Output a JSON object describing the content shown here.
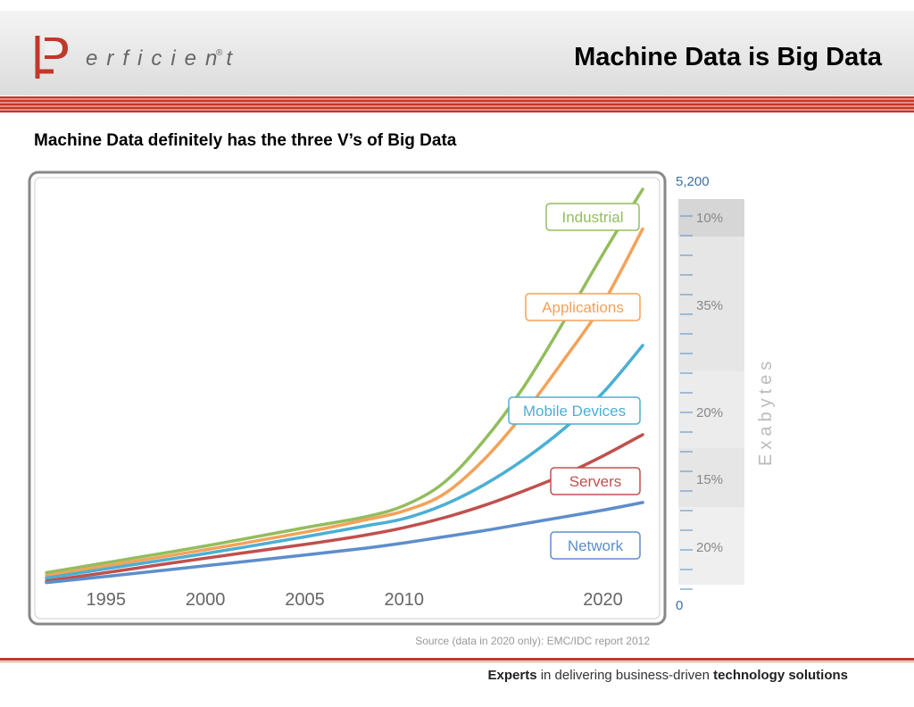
{
  "slide": {
    "title": "Machine Data is Big Data",
    "subtitle": "Machine Data definitely has the three V’s of Big Data",
    "logo_text": "erficient",
    "logo_mark": "®",
    "tagline_parts": [
      "Experts",
      " in delivering business-driven ",
      "technology solutions"
    ],
    "accent_color": "#c0392b"
  },
  "chart_data": {
    "type": "line",
    "x_ticks": [
      1995,
      2000,
      2005,
      2010,
      2020
    ],
    "xlim": [
      1992,
      2022
    ],
    "y_right_top_label": "5,200",
    "y_right_bottom_label": "0",
    "ylim": [
      0,
      5200
    ],
    "y_axis_label": "Exabytes",
    "source": "Source (data in 2020 only): EMC/IDC report 2012",
    "grid": false,
    "series": [
      {
        "name": "Industrial",
        "color": "#93bd5e",
        "x": [
          1992,
          1995,
          2000,
          2005,
          2008,
          2010,
          2012,
          2014,
          2016,
          2018,
          2020,
          2022
        ],
        "y": [
          170,
          300,
          520,
          760,
          900,
          1050,
          1350,
          1900,
          2600,
          3450,
          4350,
          5200
        ]
      },
      {
        "name": "Applications",
        "color": "#f4a259",
        "x": [
          1992,
          1995,
          2000,
          2005,
          2008,
          2010,
          2012,
          2014,
          2016,
          2018,
          2020,
          2022
        ],
        "y": [
          130,
          260,
          470,
          700,
          860,
          980,
          1200,
          1650,
          2250,
          2950,
          3700,
          4680
        ]
      },
      {
        "name": "Mobile Devices",
        "color": "#4bafd4",
        "x": [
          1992,
          1995,
          2000,
          2005,
          2008,
          2010,
          2012,
          2014,
          2016,
          2018,
          2020,
          2022
        ],
        "y": [
          100,
          220,
          420,
          640,
          780,
          880,
          1060,
          1320,
          1650,
          2050,
          2530,
          3150
        ]
      },
      {
        "name": "Servers",
        "color": "#c0504d",
        "x": [
          1992,
          1995,
          2000,
          2005,
          2008,
          2010,
          2012,
          2014,
          2016,
          2018,
          2020,
          2022
        ],
        "y": [
          60,
          170,
          360,
          540,
          660,
          760,
          890,
          1050,
          1240,
          1450,
          1700,
          1980
        ]
      },
      {
        "name": "Network",
        "color": "#5d8ecb",
        "x": [
          1992,
          1995,
          2000,
          2005,
          2008,
          2010,
          2012,
          2014,
          2016,
          2018,
          2020,
          2022
        ],
        "y": [
          40,
          120,
          260,
          400,
          490,
          560,
          640,
          720,
          810,
          900,
          990,
          1090
        ]
      }
    ],
    "share_bands": [
      {
        "label": "10%"
      },
      {
        "label": "35%"
      },
      {
        "label": "20%"
      },
      {
        "label": "15%"
      },
      {
        "label": "20%"
      }
    ]
  }
}
